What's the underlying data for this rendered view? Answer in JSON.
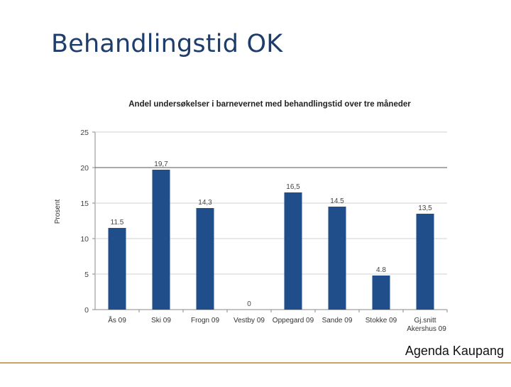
{
  "slide": {
    "title": "Behandlingstid OK",
    "footer": "Agenda Kaupang"
  },
  "colors": {
    "bar": "#1f4e8a",
    "title": "#1f3d6b",
    "footer_line": "#c9a35f"
  },
  "chart_data": {
    "type": "bar",
    "title": "Andel undersøkelser i barnevernet med behandlingstid over tre måneder",
    "ylabel": "Prosent",
    "xlabel": "",
    "ylim": [
      0,
      25
    ],
    "yticks": [
      0,
      5,
      10,
      15,
      20,
      25
    ],
    "grid": true,
    "categories": [
      {
        "line1": "Ås 09",
        "line2": ""
      },
      {
        "line1": "Ski 09",
        "line2": ""
      },
      {
        "line1": "Frogn 09",
        "line2": ""
      },
      {
        "line1": "Vestby 09",
        "line2": ""
      },
      {
        "line1": "Oppegard 09",
        "line2": ""
      },
      {
        "line1": "Sande 09",
        "line2": ""
      },
      {
        "line1": "Stokke 09",
        "line2": ""
      },
      {
        "line1": "Gj.snitt",
        "line2": "Akershus 09"
      }
    ],
    "values": [
      11.5,
      19.7,
      14.3,
      0,
      16.5,
      14.5,
      4.8,
      13.5
    ],
    "value_labels": [
      "11.5",
      "19,7",
      "14,3",
      "0",
      "16,5",
      "14.5",
      "4.8",
      "13,5"
    ]
  }
}
